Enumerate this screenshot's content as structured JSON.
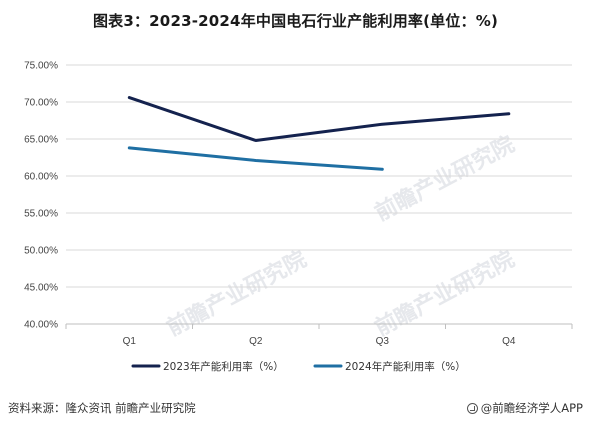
{
  "title": "图表3：2023-2024年中国电石行业产能利用率(单位：%)",
  "watermark": "前瞻产业研究院",
  "footer": {
    "source": "资料来源：隆众资讯 前瞻产业研究院",
    "brand": "@前瞻经济学人APP"
  },
  "colors": {
    "series_2023": "#14224e",
    "series_2024": "#1f6fa3",
    "gridline": "#d9d9d9"
  },
  "chart_data": {
    "type": "line",
    "title": "图表3：2023-2024年中国电石行业产能利用率(单位：%)",
    "categories": [
      "Q1",
      "Q2",
      "Q3",
      "Q4"
    ],
    "ylim": [
      40,
      75
    ],
    "yticks": [
      "40.00%",
      "45.00%",
      "50.00%",
      "55.00%",
      "60.00%",
      "65.00%",
      "70.00%",
      "75.00%"
    ],
    "grid": true,
    "legend_position": "bottom",
    "series": [
      {
        "name": "2023年产能利用率（%）",
        "values": [
          70.6,
          64.8,
          67.0,
          68.4
        ]
      },
      {
        "name": "2024年产能利用率（%）",
        "values": [
          63.8,
          62.1,
          60.9,
          null
        ]
      }
    ]
  }
}
